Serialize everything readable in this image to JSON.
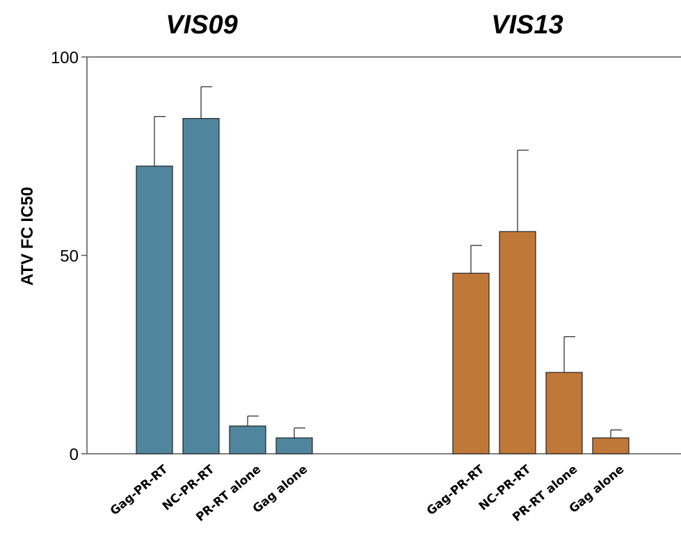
{
  "chart_data": {
    "type": "bar",
    "ylabel": "ATV FC IC50",
    "ylim": [
      0,
      100
    ],
    "yticks": [
      0,
      50,
      100
    ],
    "ytick_labels": [
      "0",
      "50",
      "100"
    ],
    "groups": [
      {
        "title": "VIS09",
        "color": "#4F869E",
        "categories": [
          "Gag-PR-RT",
          "NC-PR-RT",
          "PR-RT alone",
          "Gag alone"
        ],
        "values": [
          72.5,
          84.5,
          7,
          4
        ],
        "error_upper": [
          85,
          92.5,
          9.5,
          6.5
        ]
      },
      {
        "title": "VIS13",
        "color": "#C07838",
        "categories": [
          "Gag-PR-RT",
          "NC-PR-RT",
          "PR-RT alone",
          "Gag alone"
        ],
        "values": [
          45.5,
          56,
          20.5,
          4
        ],
        "error_upper": [
          52.5,
          76.5,
          29.5,
          6
        ]
      }
    ],
    "legend": "none",
    "grid": false
  }
}
